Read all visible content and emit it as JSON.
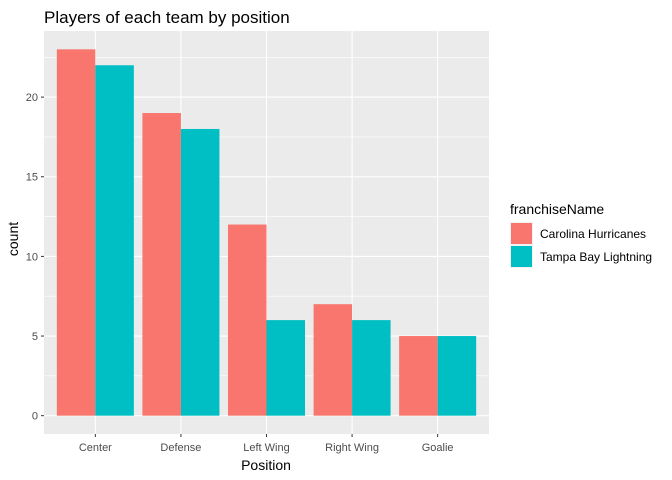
{
  "chart_data": {
    "type": "bar",
    "title": "Players of each team by position",
    "xlabel": "Position",
    "ylabel": "count",
    "categories": [
      "Center",
      "Defense",
      "Left Wing",
      "Right Wing",
      "Goalie"
    ],
    "series": [
      {
        "name": "Carolina Hurricanes",
        "values": [
          23,
          19,
          12,
          7,
          5
        ],
        "color": "#F8766D"
      },
      {
        "name": "Tampa Bay Lightning",
        "values": [
          22,
          18,
          6,
          6,
          5
        ],
        "color": "#00BFC4"
      }
    ],
    "yticks": [
      0,
      5,
      10,
      15,
      20
    ],
    "ylim": [
      -1.15,
      24.15
    ],
    "grid": true,
    "legend": {
      "title": "franchiseName",
      "position": "right"
    },
    "panel_color": "#EBEBEB",
    "grid_color": "#FFFFFF"
  }
}
